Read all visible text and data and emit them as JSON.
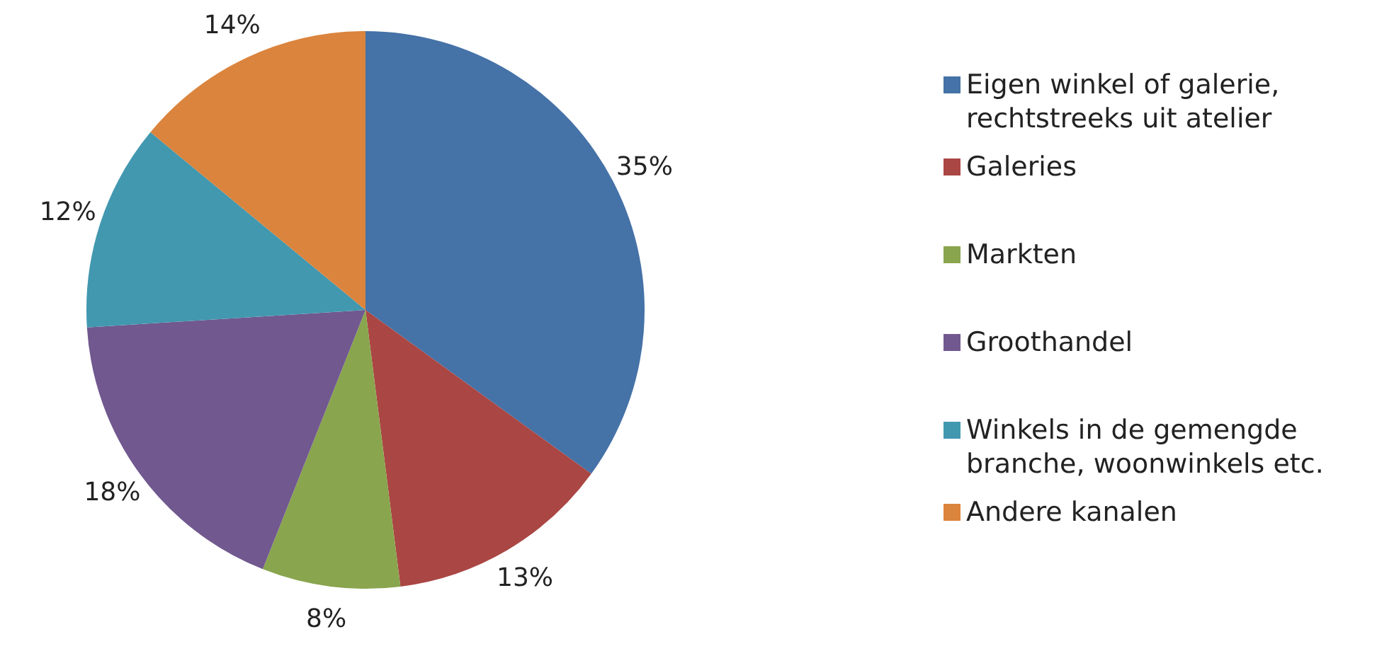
{
  "chart_data": {
    "type": "pie",
    "categories": [
      "Eigen winkel of galerie, rechtstreeks uit atelier",
      "Galeries",
      "Markten",
      "Groothandel",
      "Winkels in de gemengde branche, woonwinkels etc.",
      "Andere kanalen"
    ],
    "values": [
      35,
      13,
      8,
      18,
      12,
      14
    ],
    "colors": [
      "#4572a7",
      "#aa4643",
      "#89a54e",
      "#71588f",
      "#4198af",
      "#db843d"
    ],
    "value_labels": [
      "35%",
      "13%",
      "8%",
      "18%",
      "12%",
      "14%"
    ],
    "legend": "right"
  }
}
